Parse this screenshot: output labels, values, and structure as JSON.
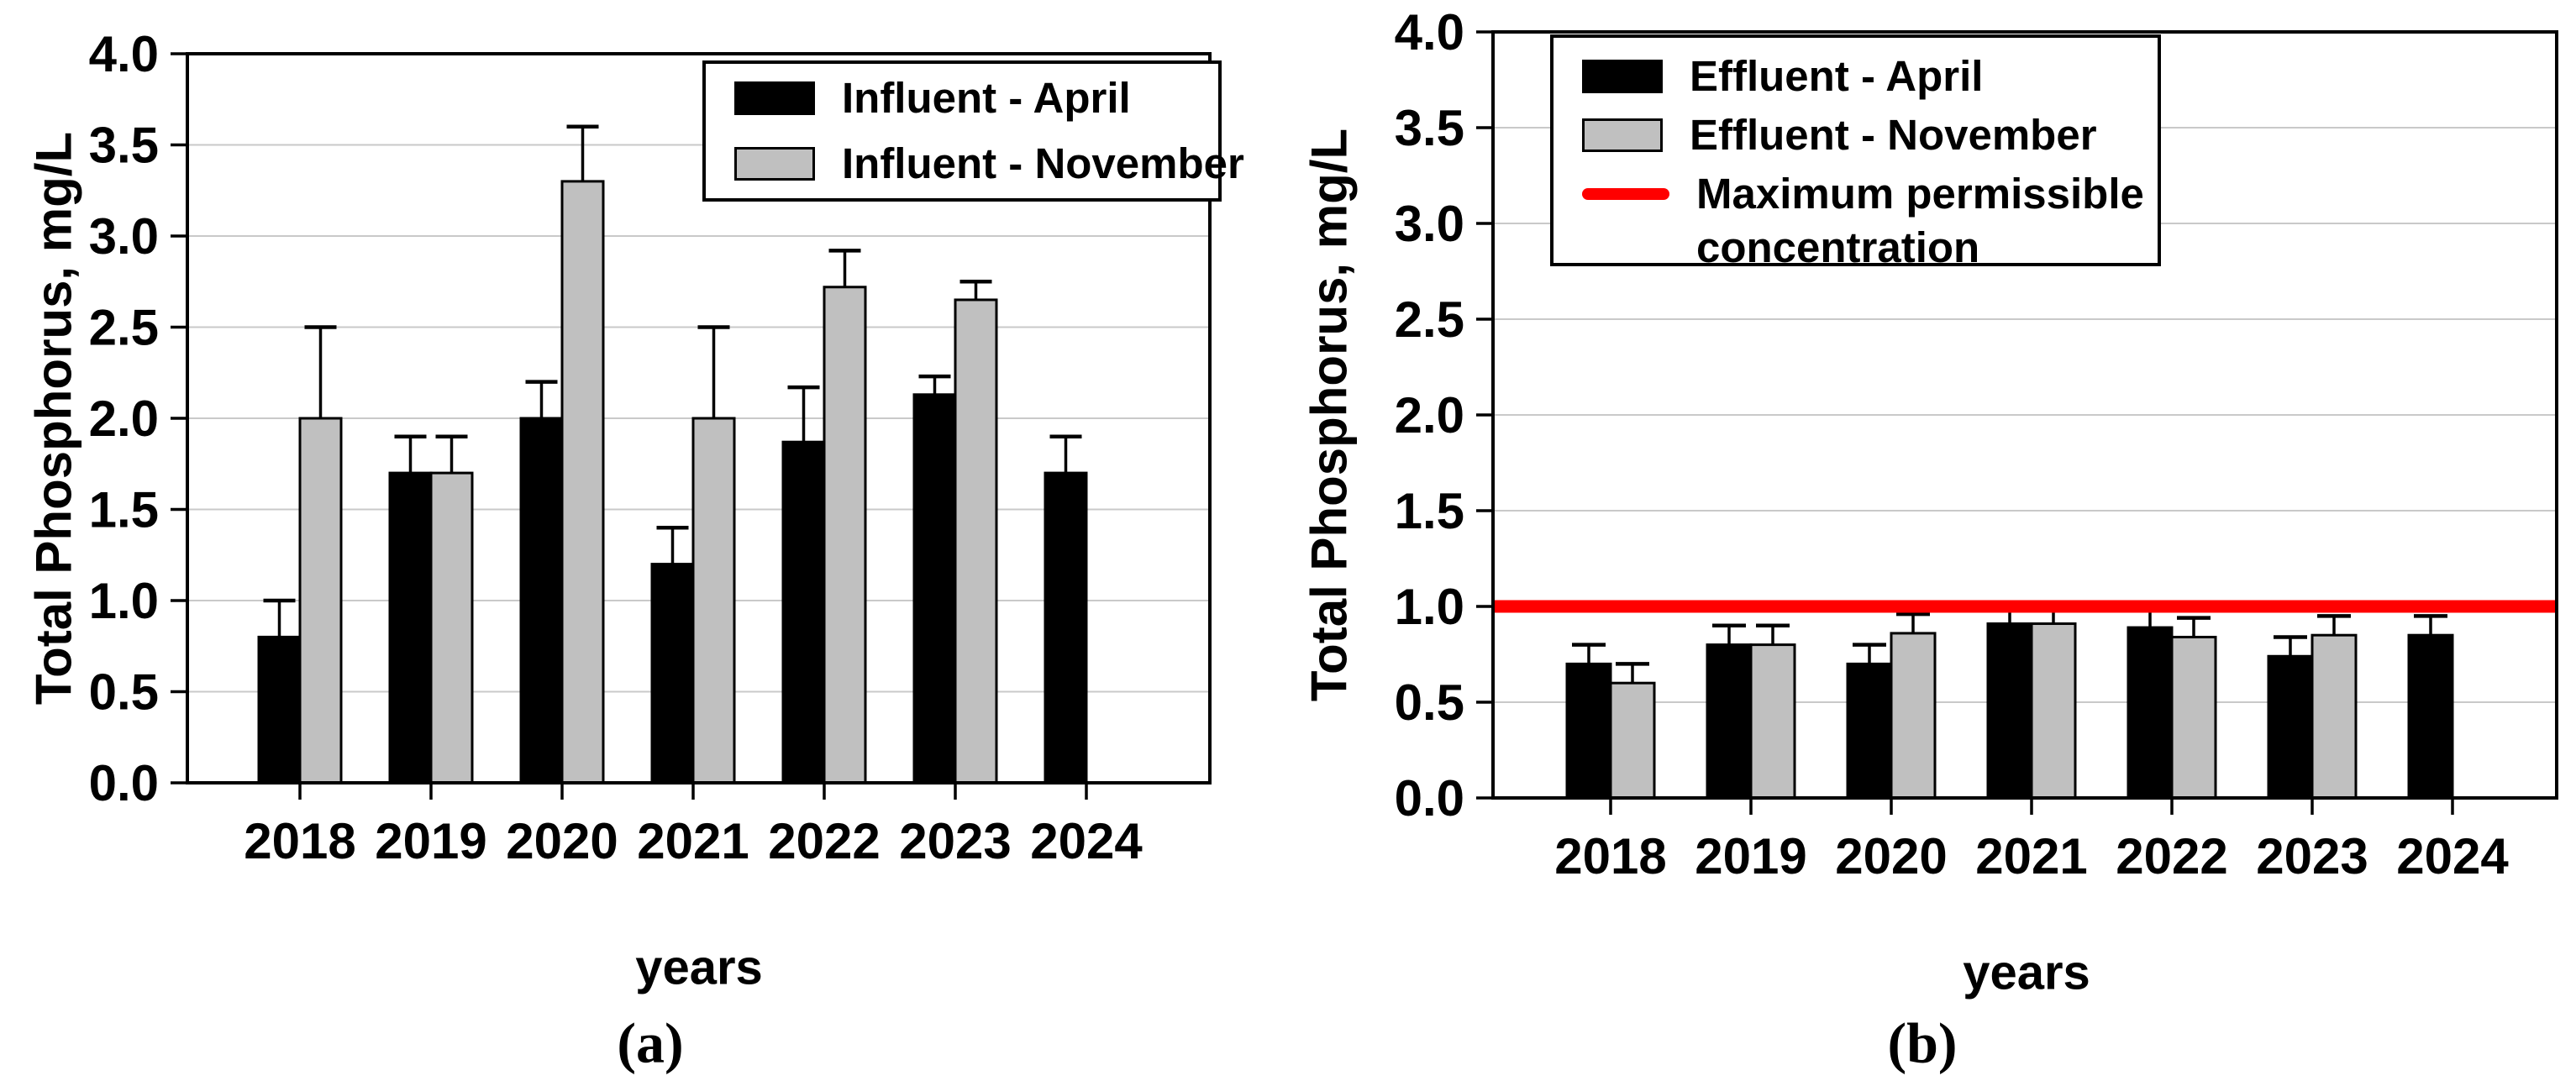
{
  "figure": {
    "background": "#ffffff",
    "panels": [
      {
        "caption": "(a)"
      },
      {
        "caption": "(b)"
      }
    ]
  },
  "colors": {
    "april_bar": "#000000",
    "november_bar": "#C0C0C0",
    "reference_line": "#FF0000",
    "gridline": "#C9C9C9",
    "frame": "#000000"
  },
  "chart_data": [
    {
      "type": "bar",
      "panel_label": "(a)",
      "title": "",
      "xlabel": "years",
      "ylabel": "Total Phosphorus, mg/L",
      "ylim": [
        0.0,
        4.0
      ],
      "ytick_step": 0.5,
      "ytick_labels": [
        "0.0",
        "0.5",
        "1.0",
        "1.5",
        "2.0",
        "2.5",
        "3.0",
        "3.5",
        "4.0"
      ],
      "grid": true,
      "legend_position": "top-right",
      "categories": [
        "2018",
        "2019",
        "2020",
        "2021",
        "2022",
        "2023",
        "2024"
      ],
      "series": [
        {
          "name": "Influent - April",
          "color": "#000000",
          "values": [
            0.8,
            1.7,
            2.0,
            1.2,
            1.87,
            2.13,
            1.7
          ],
          "errors_plus": [
            0.2,
            0.2,
            0.2,
            0.2,
            0.3,
            0.1,
            0.2
          ]
        },
        {
          "name": "Influent - November",
          "color": "#C0C0C0",
          "values": [
            2.0,
            1.7,
            3.3,
            2.0,
            2.72,
            2.65,
            null
          ],
          "errors_plus": [
            0.5,
            0.2,
            0.3,
            0.5,
            0.2,
            0.1,
            null
          ]
        }
      ]
    },
    {
      "type": "bar",
      "panel_label": "(b)",
      "title": "",
      "xlabel": "years",
      "ylabel": "Total Phosphorus, mg/L",
      "ylim": [
        0.0,
        4.0
      ],
      "ytick_step": 0.5,
      "ytick_labels": [
        "0.0",
        "0.5",
        "1.0",
        "1.5",
        "2.0",
        "2.5",
        "3.0",
        "3.5",
        "4.0"
      ],
      "grid": true,
      "legend_position": "top-left",
      "categories": [
        "2018",
        "2019",
        "2020",
        "2021",
        "2022",
        "2023",
        "2024"
      ],
      "series": [
        {
          "name": "Effluent - April",
          "color": "#000000",
          "values": [
            0.7,
            0.8,
            0.7,
            0.91,
            0.89,
            0.74,
            0.85
          ],
          "errors_plus": [
            0.1,
            0.1,
            0.1,
            0.1,
            0.09,
            0.1,
            0.1
          ]
        },
        {
          "name": "Effluent - November",
          "color": "#C0C0C0",
          "values": [
            0.6,
            0.8,
            0.86,
            0.91,
            0.84,
            0.85,
            null
          ],
          "errors_plus": [
            0.1,
            0.1,
            0.1,
            0.1,
            0.1,
            0.1,
            null
          ]
        }
      ],
      "ref_line": {
        "label": "Maximum permissible concentration",
        "value": 1.0,
        "color": "#FF0000"
      }
    }
  ]
}
